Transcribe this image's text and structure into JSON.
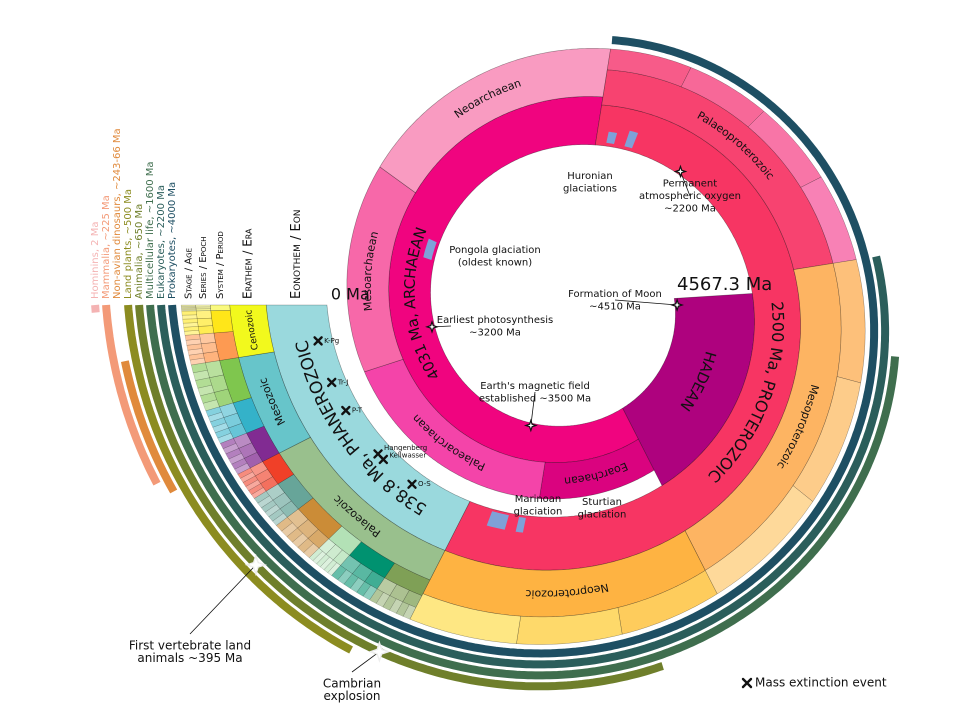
{
  "column_headers": [
    "Stage / Age",
    "Series / Epoch",
    "System / Period",
    "Erathem / Era",
    "Eonothem / Eon"
  ],
  "start_label": "4567.3 Ma",
  "end_label": "0 Ma",
  "eons": [
    {
      "label": "HADEAN",
      "color": "#ae027e"
    },
    {
      "label": "4031 Ma, ARCHAEAN",
      "color": "#f0047f"
    },
    {
      "label": "2500 Ma, PROTEROZOIC",
      "color": "#f73563"
    },
    {
      "label": "538.8 Ma, PHANEROZOIC",
      "color": "#9ad9dd"
    }
  ],
  "eras": [
    {
      "label": "Eoarchaean",
      "color": "#da037f"
    },
    {
      "label": "Palaeoarchaean",
      "color": "#f444a9"
    },
    {
      "label": "Mesoarchaean",
      "color": "#f768a9"
    },
    {
      "label": "Neoarchaean",
      "color": "#f99bc1"
    },
    {
      "label": "Palaeoproterozoic",
      "color": "#f74370"
    },
    {
      "label": "Mesoproterozoic",
      "color": "#fdb462"
    },
    {
      "label": "Neoproterozoic",
      "color": "#feb342"
    },
    {
      "label": "Palaeozoic",
      "color": "#99c08d"
    },
    {
      "label": "Mesozoic",
      "color": "#67c5ca"
    },
    {
      "label": "Cenozoic",
      "color": "#f2f91d"
    }
  ],
  "extinctions": [
    "K-Pg",
    "Tr-J",
    "P-T",
    "Hangenberg",
    "Kellwasser",
    "O-S"
  ],
  "annotations": [
    {
      "lines": [
        "Formation of Moon",
        "~4510 Ma"
      ]
    },
    {
      "lines": [
        "Earth's magnetic field",
        "established ~3500 Ma"
      ]
    },
    {
      "lines": [
        "Earliest photosynthesis",
        "~3200 Ma"
      ]
    },
    {
      "lines": [
        "Pongola glaciation",
        "(oldest known)"
      ]
    },
    {
      "lines": [
        "Huronian",
        "glaciations"
      ]
    },
    {
      "lines": [
        "Permanent",
        "atmospheric oxygen",
        "~2200 Ma"
      ]
    },
    {
      "lines": [
        "Marinoan",
        "glaciation"
      ]
    },
    {
      "lines": [
        "Sturtian",
        "glaciation"
      ]
    },
    {
      "lines": [
        "First vertebrate land",
        "animals ~395 Ma"
      ]
    },
    {
      "lines": [
        "Cambrian",
        "explosion"
      ]
    }
  ],
  "life": [
    {
      "label": "Prokaryotes, ~4000 Ma",
      "color": "#1e4f63"
    },
    {
      "label": "Eukaryotes, ~2200 Ma",
      "color": "#2b5e5b"
    },
    {
      "label": "Multicellular life, ~1600 Ma",
      "color": "#3f6e4e"
    },
    {
      "label": "Animalia, ~650 Ma",
      "color": "#6f7f2b"
    },
    {
      "label": "Land plants, ~500 Ma",
      "color": "#8c8c20"
    },
    {
      "label": "Non-avian dinosaurs, ~243-66 Ma",
      "color": "#e08a3c"
    },
    {
      "label": "Mammalia, ~225 Ma",
      "color": "#f39a78"
    },
    {
      "label": "Hominins, 2 Ma",
      "color": "#f4b3b3"
    }
  ],
  "legend": "Mass extinction event"
}
